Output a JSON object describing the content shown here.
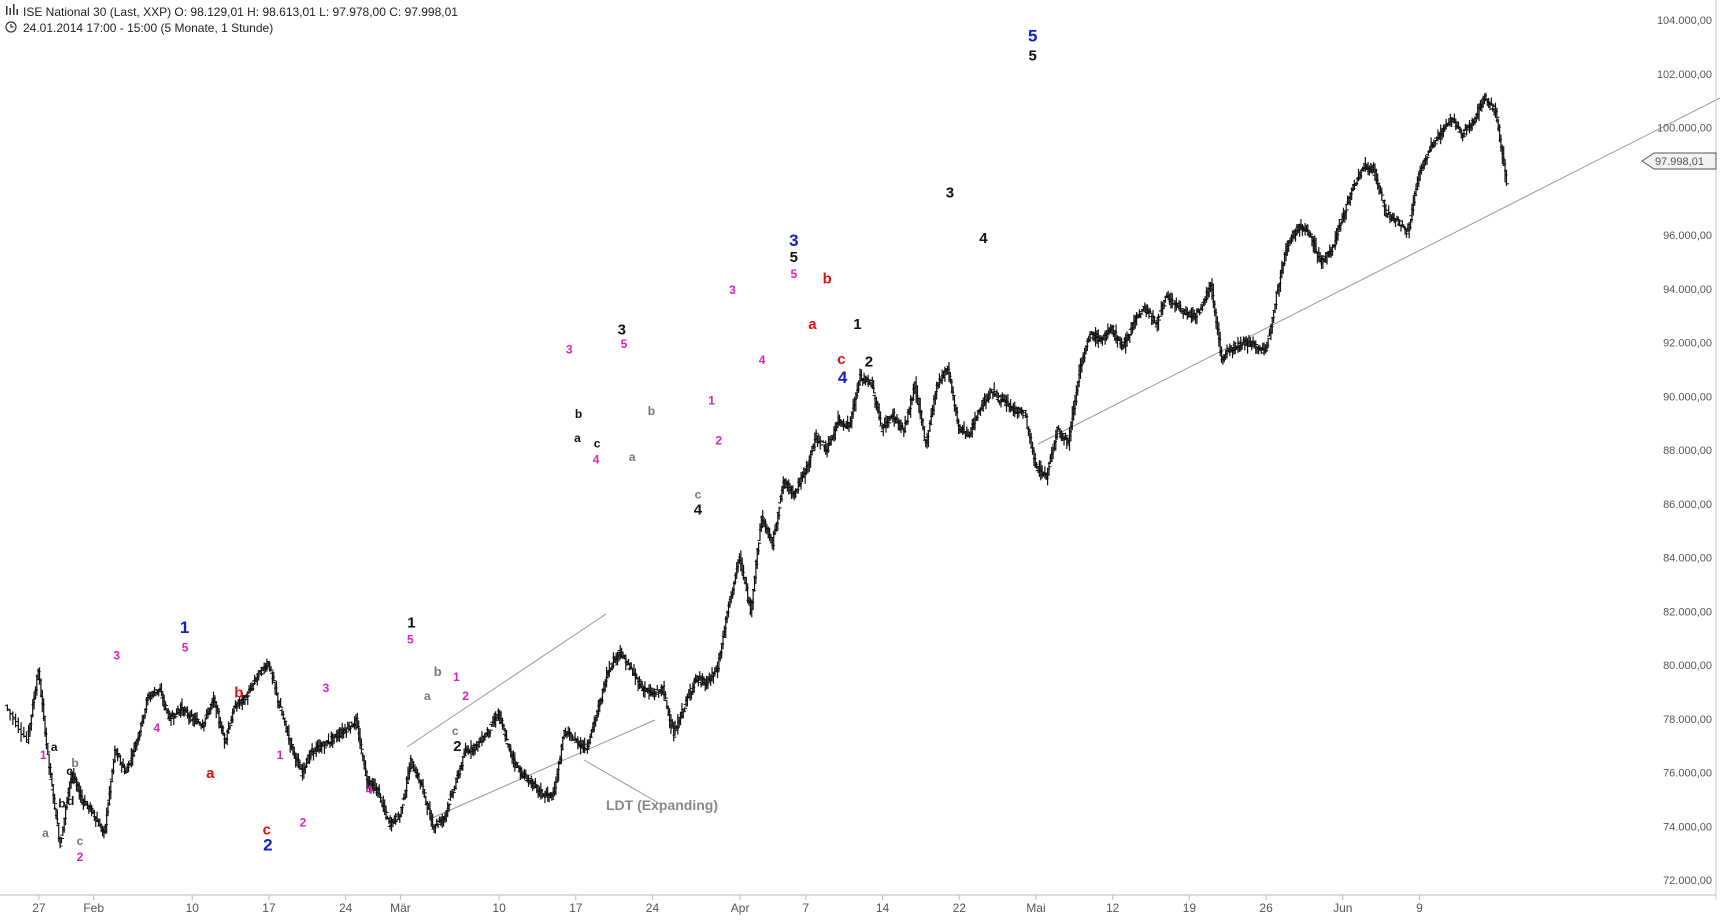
{
  "header": {
    "icon": "bar-chart-icon",
    "line1": "ISE National 30 (Last, XXP)  O: 98.129,01  H: 98.613,01  L: 97.978,00  C: 97.998,01",
    "clock_icon": "clock-icon",
    "line2": "24.01.2014 17:00 - 15:00 (5 Monate, 1 Stunde)"
  },
  "last_price_label": "97.998,01",
  "colors": {
    "bars": "#111111",
    "magenta": "#e020c0",
    "red": "#e01010",
    "blue": "#1020d0",
    "black": "#111111",
    "gray": "#777777",
    "trendline": "#999999"
  },
  "chart_data": {
    "type": "line",
    "style": "ohlc-bars",
    "title": "ISE National 30 (Last, XXP)",
    "ylim": [
      71000,
      105000
    ],
    "y_scale": "linear",
    "yaxis_side": "right",
    "yticks": [
      {
        "value": 72000,
        "label": "72.000,00"
      },
      {
        "value": 74000,
        "label": "74.000,00"
      },
      {
        "value": 76000,
        "label": "76.000,00"
      },
      {
        "value": 78000,
        "label": "78.000,00"
      },
      {
        "value": 80000,
        "label": "80.000,00"
      },
      {
        "value": 82000,
        "label": "82.000,00"
      },
      {
        "value": 84000,
        "label": "84.000,00"
      },
      {
        "value": 86000,
        "label": "86.000,00"
      },
      {
        "value": 88000,
        "label": "88.000,00"
      },
      {
        "value": 90000,
        "label": "90.000,00"
      },
      {
        "value": 92000,
        "label": "92.000,00"
      },
      {
        "value": 94000,
        "label": "94.000,00"
      },
      {
        "value": 96000,
        "label": "96.000,00"
      },
      {
        "value": 100000,
        "label": "100.000,00"
      },
      {
        "value": 102000,
        "label": "102.000,00"
      },
      {
        "value": 104000,
        "label": "104.000,00"
      }
    ],
    "xticks": [
      {
        "day": 3,
        "label": "27"
      },
      {
        "day": 8,
        "label": "Feb"
      },
      {
        "day": 17,
        "label": "10"
      },
      {
        "day": 24,
        "label": "17"
      },
      {
        "day": 31,
        "label": "24"
      },
      {
        "day": 36,
        "label": "Mär"
      },
      {
        "day": 45,
        "label": "10"
      },
      {
        "day": 52,
        "label": "17"
      },
      {
        "day": 59,
        "label": "24"
      },
      {
        "day": 67,
        "label": "Apr"
      },
      {
        "day": 73,
        "label": "7"
      },
      {
        "day": 80,
        "label": "14"
      },
      {
        "day": 87,
        "label": "22"
      },
      {
        "day": 94,
        "label": "Mai"
      },
      {
        "day": 101,
        "label": "12"
      },
      {
        "day": 108,
        "label": "19"
      },
      {
        "day": 115,
        "label": "26"
      },
      {
        "day": 122,
        "label": "Jun"
      },
      {
        "day": 129,
        "label": "9"
      }
    ],
    "xlim": [
      0,
      140
    ],
    "price_path": [
      [
        0,
        78500
      ],
      [
        2,
        77200
      ],
      [
        3,
        79800
      ],
      [
        4,
        76200
      ],
      [
        5,
        73300
      ],
      [
        6,
        76000
      ],
      [
        7,
        75000
      ],
      [
        8,
        74500
      ],
      [
        9,
        73700
      ],
      [
        10,
        76800
      ],
      [
        11,
        76000
      ],
      [
        12,
        77200
      ],
      [
        13,
        78800
      ],
      [
        14,
        79100
      ],
      [
        15,
        78000
      ],
      [
        16,
        78400
      ],
      [
        17,
        78000
      ],
      [
        18,
        77800
      ],
      [
        19,
        78700
      ],
      [
        20,
        77200
      ],
      [
        21,
        78500
      ],
      [
        22,
        78800
      ],
      [
        23,
        79600
      ],
      [
        24,
        80100
      ],
      [
        25,
        78500
      ],
      [
        26,
        77100
      ],
      [
        27,
        76000
      ],
      [
        28,
        76800
      ],
      [
        29,
        77000
      ],
      [
        30,
        77300
      ],
      [
        31,
        77600
      ],
      [
        32,
        77900
      ],
      [
        33,
        75700
      ],
      [
        34,
        75300
      ],
      [
        35,
        74100
      ],
      [
        36,
        74400
      ],
      [
        37,
        76400
      ],
      [
        38,
        75500
      ],
      [
        39,
        74000
      ],
      [
        40,
        74300
      ],
      [
        41,
        75500
      ],
      [
        42,
        76800
      ],
      [
        43,
        77000
      ],
      [
        44,
        77500
      ],
      [
        45,
        78200
      ],
      [
        46,
        76800
      ],
      [
        47,
        76000
      ],
      [
        48,
        75600
      ],
      [
        49,
        75200
      ],
      [
        50,
        75100
      ],
      [
        51,
        77500
      ],
      [
        52,
        77200
      ],
      [
        53,
        76900
      ],
      [
        54,
        78200
      ],
      [
        55,
        79800
      ],
      [
        56,
        80500
      ],
      [
        57,
        79900
      ],
      [
        58,
        79200
      ],
      [
        59,
        78900
      ],
      [
        60,
        79100
      ],
      [
        61,
        77400
      ],
      [
        62,
        78500
      ],
      [
        63,
        79500
      ],
      [
        64,
        79300
      ],
      [
        65,
        79900
      ],
      [
        66,
        82200
      ],
      [
        67,
        84000
      ],
      [
        68,
        82000
      ],
      [
        69,
        85500
      ],
      [
        70,
        84500
      ],
      [
        71,
        86800
      ],
      [
        72,
        86400
      ],
      [
        73,
        87200
      ],
      [
        74,
        88500
      ],
      [
        75,
        88000
      ],
      [
        76,
        89100
      ],
      [
        77,
        88900
      ],
      [
        78,
        90700
      ],
      [
        79,
        90500
      ],
      [
        80,
        88800
      ],
      [
        81,
        89300
      ],
      [
        82,
        88700
      ],
      [
        83,
        90400
      ],
      [
        84,
        88200
      ],
      [
        85,
        90400
      ],
      [
        86,
        91100
      ],
      [
        87,
        88800
      ],
      [
        88,
        88600
      ],
      [
        89,
        89600
      ],
      [
        90,
        90200
      ],
      [
        91,
        89800
      ],
      [
        92,
        89500
      ],
      [
        93,
        89400
      ],
      [
        94,
        87400
      ],
      [
        95,
        87000
      ],
      [
        96,
        88800
      ],
      [
        97,
        88300
      ],
      [
        98,
        90900
      ],
      [
        99,
        92300
      ],
      [
        100,
        92100
      ],
      [
        101,
        92500
      ],
      [
        102,
        91800
      ],
      [
        103,
        92800
      ],
      [
        104,
        93300
      ],
      [
        105,
        92700
      ],
      [
        106,
        93700
      ],
      [
        107,
        93300
      ],
      [
        108,
        93000
      ],
      [
        109,
        93100
      ],
      [
        110,
        94200
      ],
      [
        111,
        91400
      ],
      [
        112,
        91800
      ],
      [
        113,
        92000
      ],
      [
        114,
        91900
      ],
      [
        115,
        91600
      ],
      [
        116,
        93800
      ],
      [
        117,
        95700
      ],
      [
        118,
        96300
      ],
      [
        119,
        96100
      ],
      [
        120,
        95000
      ],
      [
        121,
        95400
      ],
      [
        122,
        96600
      ],
      [
        123,
        97800
      ],
      [
        124,
        98600
      ],
      [
        125,
        98300
      ],
      [
        126,
        96800
      ],
      [
        127,
        96500
      ],
      [
        128,
        96100
      ],
      [
        129,
        98300
      ],
      [
        130,
        99200
      ],
      [
        131,
        99800
      ],
      [
        132,
        100300
      ],
      [
        133,
        99700
      ],
      [
        134,
        100300
      ],
      [
        135,
        101100
      ],
      [
        136,
        100600
      ],
      [
        137,
        98000
      ]
    ],
    "annotations": [
      {
        "day": 6.8,
        "price": 76500,
        "text": "1",
        "color": "magenta",
        "size": 12
      },
      {
        "day": 8.8,
        "price": 76800,
        "text": "a",
        "color": "black",
        "size": 12
      },
      {
        "day": 7.2,
        "price": 73600,
        "text": "a",
        "color": "gray",
        "size": 12
      },
      {
        "day": 10.2,
        "price": 74700,
        "text": "b",
        "color": "black",
        "size": 12
      },
      {
        "day": 11.6,
        "price": 75900,
        "text": "c",
        "color": "black",
        "size": 12
      },
      {
        "day": 12.2,
        "price": 75600,
        "text": "e",
        "color": "black",
        "size": 12
      },
      {
        "day": 12.6,
        "price": 76200,
        "text": "b",
        "color": "gray",
        "size": 12
      },
      {
        "day": 11.8,
        "price": 74800,
        "text": "d",
        "color": "black",
        "size": 12
      },
      {
        "day": 13.5,
        "price": 73300,
        "text": "c",
        "color": "gray",
        "size": 12
      },
      {
        "day": 13.5,
        "price": 72700,
        "text": "2",
        "color": "magenta",
        "size": 12
      },
      {
        "day": 20.2,
        "price": 80200,
        "text": "3",
        "color": "magenta",
        "size": 12
      },
      {
        "day": 27.5,
        "price": 77500,
        "text": "4",
        "color": "magenta",
        "size": 12
      },
      {
        "day": 32.6,
        "price": 81200,
        "text": "1",
        "color": "blue",
        "size": 17
      },
      {
        "day": 32.7,
        "price": 80500,
        "text": "5",
        "color": "magenta",
        "size": 12
      },
      {
        "day": 37.3,
        "price": 75800,
        "text": "a",
        "color": "red",
        "size": 15
      },
      {
        "day": 42.5,
        "price": 78800,
        "text": "b",
        "color": "red",
        "size": 15
      },
      {
        "day": 47.6,
        "price": 73700,
        "text": "c",
        "color": "red",
        "size": 15
      },
      {
        "day": 47.8,
        "price": 73100,
        "text": "2",
        "color": "blue",
        "size": 17
      },
      {
        "day": 50.0,
        "price": 76500,
        "text": "1",
        "color": "magenta",
        "size": 12
      },
      {
        "day": 58.4,
        "price": 79000,
        "text": "3",
        "color": "magenta",
        "size": 12
      },
      {
        "day": 66.3,
        "price": 75200,
        "text": "4",
        "color": "magenta",
        "size": 12
      },
      {
        "day": 54.2,
        "price": 74000,
        "text": "2",
        "color": "magenta",
        "size": 12
      },
      {
        "day": 74.0,
        "price": 81400,
        "text": "1",
        "color": "black",
        "size": 15
      },
      {
        "day": 73.8,
        "price": 80800,
        "text": "5",
        "color": "magenta",
        "size": 12
      },
      {
        "day": 78.8,
        "price": 79600,
        "text": "b",
        "color": "gray",
        "size": 13
      },
      {
        "day": 76.9,
        "price": 78700,
        "text": "a",
        "color": "gray",
        "size": 12
      },
      {
        "day": 82.2,
        "price": 79400,
        "text": "1",
        "color": "magenta",
        "size": 12
      },
      {
        "day": 83.9,
        "price": 78700,
        "text": "2",
        "color": "magenta",
        "size": 12
      },
      {
        "day": 82.0,
        "price": 77400,
        "text": "c",
        "color": "gray",
        "size": 12
      },
      {
        "day": 82.4,
        "price": 76800,
        "text": "2",
        "color": "black",
        "size": 15
      },
      {
        "day": 102.8,
        "price": 91600,
        "text": "3",
        "color": "magenta",
        "size": 12
      },
      {
        "day": 104.5,
        "price": 89200,
        "text": "b",
        "color": "black",
        "size": 12
      },
      {
        "day": 104.3,
        "price": 88300,
        "text": "a",
        "color": "black",
        "size": 12
      },
      {
        "day": 107.9,
        "price": 88100,
        "text": "c",
        "color": "black",
        "size": 12
      },
      {
        "day": 107.7,
        "price": 87500,
        "text": "4",
        "color": "magenta",
        "size": 12
      },
      {
        "day": 112.4,
        "price": 92300,
        "text": "3",
        "color": "black",
        "size": 15
      },
      {
        "day": 112.8,
        "price": 91800,
        "text": "5",
        "color": "magenta",
        "size": 12
      },
      {
        "day": 114.3,
        "price": 87600,
        "text": "a",
        "color": "gray",
        "size": 12
      },
      {
        "day": 117.8,
        "price": 89300,
        "text": "b",
        "color": "gray",
        "size": 12
      },
      {
        "day": 126.3,
        "price": 86200,
        "text": "c",
        "color": "gray",
        "size": 12
      },
      {
        "day": 126.3,
        "price": 85600,
        "text": "4",
        "color": "black",
        "size": 15
      },
      {
        "day": 128.8,
        "price": 89700,
        "text": "1",
        "color": "magenta",
        "size": 12
      },
      {
        "day": 130.1,
        "price": 88200,
        "text": "2",
        "color": "magenta",
        "size": 12
      },
      {
        "day": 132.6,
        "price": 93800,
        "text": "3",
        "color": "magenta",
        "size": 12
      },
      {
        "day": 138.0,
        "price": 91200,
        "text": "4",
        "color": "magenta",
        "size": 12
      },
      {
        "day": 143.8,
        "price": 95600,
        "text": "3",
        "color": "blue",
        "size": 17
      },
      {
        "day": 143.8,
        "price": 95000,
        "text": "5",
        "color": "black",
        "size": 15
      },
      {
        "day": 143.8,
        "price": 94400,
        "text": "5",
        "color": "magenta",
        "size": 12
      },
      {
        "day": 147.2,
        "price": 92500,
        "text": "a",
        "color": "red",
        "size": 15
      },
      {
        "day": 149.9,
        "price": 94200,
        "text": "b",
        "color": "red",
        "size": 15
      },
      {
        "day": 152.5,
        "price": 91200,
        "text": "c",
        "color": "red",
        "size": 15
      },
      {
        "day": 152.7,
        "price": 90500,
        "text": "4",
        "color": "blue",
        "size": 17
      },
      {
        "day": 155.4,
        "price": 92500,
        "text": "1",
        "color": "black",
        "size": 15
      },
      {
        "day": 157.5,
        "price": 91100,
        "text": "2",
        "color": "black",
        "size": 15
      },
      {
        "day": 172.3,
        "price": 97400,
        "text": "3",
        "color": "black",
        "size": 15
      },
      {
        "day": 178.4,
        "price": 95700,
        "text": "4",
        "color": "black",
        "size": 15
      },
      {
        "day": 187.4,
        "price": 103200,
        "text": "5",
        "color": "blue",
        "size": 17
      },
      {
        "day": 187.4,
        "price": 102500,
        "text": "5",
        "color": "black",
        "size": 15
      }
    ],
    "note": {
      "text": "LDT (Expanding)"
    }
  }
}
